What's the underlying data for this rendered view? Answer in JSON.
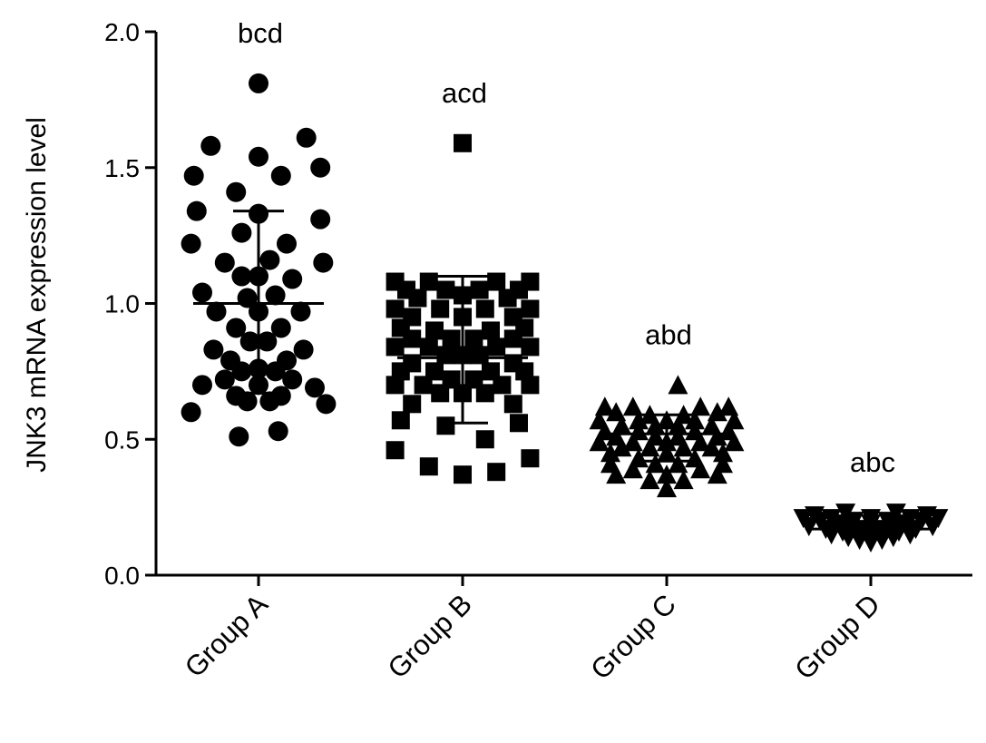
{
  "chart_data": {
    "type": "scatter",
    "ylabel": "JNK3 mRNA expression level",
    "xlabel": "",
    "ylim": [
      0,
      2.0
    ],
    "yticks": [
      0.0,
      0.5,
      1.0,
      1.5,
      2.0
    ],
    "ytick_labels": [
      "0.0",
      "0.5",
      "1.0",
      "1.5",
      "2.0"
    ],
    "grid": false,
    "legend": "none",
    "categories": [
      "Group A",
      "Group B",
      "Group C",
      "Group D"
    ],
    "series": [
      {
        "category": "Group A",
        "marker": "circle",
        "annotation": "bcd",
        "mean": 1.0,
        "sd_low": 0.67,
        "sd_high": 1.34,
        "points": [
          [
            0.0,
            1.81
          ],
          [
            -0.85,
            1.58
          ],
          [
            0.0,
            1.54
          ],
          [
            0.85,
            1.61
          ],
          [
            -1.15,
            1.47
          ],
          [
            0.4,
            1.47
          ],
          [
            1.1,
            1.5
          ],
          [
            -0.4,
            1.41
          ],
          [
            -1.1,
            1.34
          ],
          [
            0.0,
            1.33
          ],
          [
            1.1,
            1.31
          ],
          [
            -0.3,
            1.26
          ],
          [
            -1.2,
            1.22
          ],
          [
            0.5,
            1.22
          ],
          [
            -0.6,
            1.15
          ],
          [
            0.2,
            1.16
          ],
          [
            1.15,
            1.15
          ],
          [
            0.0,
            1.1
          ],
          [
            -0.3,
            1.1
          ],
          [
            0.6,
            1.09
          ],
          [
            -1.0,
            1.04
          ],
          [
            -0.2,
            1.02
          ],
          [
            0.3,
            1.03
          ],
          [
            -0.75,
            0.97
          ],
          [
            0.0,
            0.97
          ],
          [
            0.75,
            0.97
          ],
          [
            -0.4,
            0.91
          ],
          [
            0.4,
            0.91
          ],
          [
            -0.15,
            0.86
          ],
          [
            -0.8,
            0.83
          ],
          [
            0.15,
            0.86
          ],
          [
            0.8,
            0.83
          ],
          [
            -0.5,
            0.79
          ],
          [
            0.5,
            0.79
          ],
          [
            -0.3,
            0.75
          ],
          [
            0.0,
            0.76
          ],
          [
            0.3,
            0.75
          ],
          [
            -0.6,
            0.72
          ],
          [
            0.6,
            0.72
          ],
          [
            -1.0,
            0.7
          ],
          [
            0.0,
            0.7
          ],
          [
            1.0,
            0.69
          ],
          [
            -0.4,
            0.66
          ],
          [
            0.4,
            0.66
          ],
          [
            -0.2,
            0.64
          ],
          [
            0.2,
            0.64
          ],
          [
            1.2,
            0.63
          ],
          [
            -1.2,
            0.6
          ],
          [
            -0.35,
            0.51
          ],
          [
            0.35,
            0.53
          ]
        ]
      },
      {
        "category": "Group B",
        "marker": "square",
        "annotation": "acd",
        "mean": 0.8,
        "sd_low": 0.56,
        "sd_high": 1.1,
        "points": [
          [
            0.0,
            1.59
          ],
          [
            -1.2,
            1.08
          ],
          [
            -0.6,
            1.08
          ],
          [
            0.6,
            1.08
          ],
          [
            1.2,
            1.08
          ],
          [
            -1.0,
            1.05
          ],
          [
            -0.3,
            1.05
          ],
          [
            0.3,
            1.05
          ],
          [
            1.0,
            1.05
          ],
          [
            -0.8,
            1.02
          ],
          [
            0.0,
            1.03
          ],
          [
            0.8,
            1.02
          ],
          [
            -1.2,
            0.98
          ],
          [
            -0.4,
            0.98
          ],
          [
            0.4,
            0.98
          ],
          [
            1.2,
            0.98
          ],
          [
            -0.9,
            0.95
          ],
          [
            0.0,
            0.95
          ],
          [
            0.9,
            0.95
          ],
          [
            -1.1,
            0.91
          ],
          [
            -0.5,
            0.9
          ],
          [
            0.5,
            0.9
          ],
          [
            1.1,
            0.91
          ],
          [
            -0.2,
            0.87
          ],
          [
            0.2,
            0.87
          ],
          [
            -0.9,
            0.87
          ],
          [
            0.9,
            0.87
          ],
          [
            -1.2,
            0.84
          ],
          [
            -0.6,
            0.84
          ],
          [
            0.6,
            0.84
          ],
          [
            1.2,
            0.84
          ],
          [
            -0.3,
            0.81
          ],
          [
            0.0,
            0.81
          ],
          [
            0.3,
            0.81
          ],
          [
            -0.9,
            0.78
          ],
          [
            0.9,
            0.78
          ],
          [
            -1.1,
            0.75
          ],
          [
            -0.5,
            0.75
          ],
          [
            0.5,
            0.75
          ],
          [
            1.1,
            0.75
          ],
          [
            -0.2,
            0.72
          ],
          [
            0.2,
            0.72
          ],
          [
            -1.2,
            0.7
          ],
          [
            -0.7,
            0.7
          ],
          [
            0.7,
            0.7
          ],
          [
            1.2,
            0.7
          ],
          [
            0.0,
            0.67
          ],
          [
            -0.4,
            0.67
          ],
          [
            0.4,
            0.67
          ],
          [
            -0.9,
            0.63
          ],
          [
            0.9,
            0.63
          ],
          [
            -1.1,
            0.57
          ],
          [
            -0.3,
            0.55
          ],
          [
            1.0,
            0.56
          ],
          [
            0.4,
            0.5
          ],
          [
            -1.2,
            0.46
          ],
          [
            1.2,
            0.43
          ],
          [
            -0.6,
            0.4
          ],
          [
            0.0,
            0.37
          ],
          [
            0.6,
            0.38
          ]
        ]
      },
      {
        "category": "Group C",
        "marker": "triangle-up",
        "annotation": "abd",
        "mean": 0.52,
        "sd_low": 0.42,
        "sd_high": 0.59,
        "points": [
          [
            0.2,
            0.7
          ],
          [
            -1.1,
            0.62
          ],
          [
            -0.6,
            0.62
          ],
          [
            0.6,
            0.62
          ],
          [
            1.1,
            0.62
          ],
          [
            -0.9,
            0.6
          ],
          [
            -0.3,
            0.59
          ],
          [
            0.3,
            0.59
          ],
          [
            0.9,
            0.6
          ],
          [
            -1.2,
            0.57
          ],
          [
            -0.5,
            0.57
          ],
          [
            0.0,
            0.57
          ],
          [
            0.5,
            0.57
          ],
          [
            1.2,
            0.57
          ],
          [
            -0.8,
            0.55
          ],
          [
            -0.2,
            0.55
          ],
          [
            0.2,
            0.55
          ],
          [
            0.8,
            0.55
          ],
          [
            -1.1,
            0.53
          ],
          [
            -0.5,
            0.53
          ],
          [
            0.5,
            0.53
          ],
          [
            1.1,
            0.53
          ],
          [
            -0.9,
            0.51
          ],
          [
            -0.2,
            0.51
          ],
          [
            0.2,
            0.51
          ],
          [
            0.9,
            0.51
          ],
          [
            -1.2,
            0.49
          ],
          [
            -0.6,
            0.49
          ],
          [
            0.0,
            0.49
          ],
          [
            0.6,
            0.49
          ],
          [
            1.2,
            0.49
          ],
          [
            -0.8,
            0.47
          ],
          [
            -0.3,
            0.47
          ],
          [
            0.3,
            0.47
          ],
          [
            0.8,
            0.47
          ],
          [
            -1.0,
            0.45
          ],
          [
            0.0,
            0.45
          ],
          [
            1.0,
            0.45
          ],
          [
            -0.5,
            0.43
          ],
          [
            0.5,
            0.43
          ],
          [
            -1.0,
            0.41
          ],
          [
            -0.2,
            0.41
          ],
          [
            0.2,
            0.41
          ],
          [
            1.0,
            0.41
          ],
          [
            -0.6,
            0.39
          ],
          [
            0.6,
            0.39
          ],
          [
            -0.9,
            0.37
          ],
          [
            0.0,
            0.37
          ],
          [
            0.9,
            0.37
          ],
          [
            -0.3,
            0.35
          ],
          [
            0.3,
            0.35
          ],
          [
            0.0,
            0.32
          ]
        ]
      },
      {
        "category": "Group D",
        "marker": "triangle-down",
        "annotation": "abc",
        "mean": 0.17,
        "sd_low": 0.15,
        "sd_high": 0.19,
        "points": [
          [
            -0.45,
            0.23
          ],
          [
            0.45,
            0.23
          ],
          [
            -1.0,
            0.22
          ],
          [
            1.0,
            0.22
          ],
          [
            -0.7,
            0.21
          ],
          [
            0.0,
            0.21
          ],
          [
            0.7,
            0.21
          ],
          [
            -1.2,
            0.21
          ],
          [
            1.2,
            0.21
          ],
          [
            -0.9,
            0.2
          ],
          [
            -0.3,
            0.2
          ],
          [
            0.3,
            0.2
          ],
          [
            0.9,
            0.2
          ],
          [
            -0.6,
            0.19
          ],
          [
            0.0,
            0.19
          ],
          [
            0.6,
            0.19
          ],
          [
            -1.1,
            0.18
          ],
          [
            -0.4,
            0.18
          ],
          [
            0.4,
            0.18
          ],
          [
            1.1,
            0.18
          ],
          [
            -0.8,
            0.17
          ],
          [
            -0.2,
            0.17
          ],
          [
            0.2,
            0.17
          ],
          [
            0.8,
            0.17
          ],
          [
            -0.5,
            0.16
          ],
          [
            0.0,
            0.16
          ],
          [
            0.5,
            0.16
          ],
          [
            -0.7,
            0.15
          ],
          [
            -0.2,
            0.15
          ],
          [
            0.2,
            0.15
          ],
          [
            0.7,
            0.15
          ],
          [
            -0.4,
            0.14
          ],
          [
            0.0,
            0.14
          ],
          [
            0.4,
            0.14
          ],
          [
            -0.2,
            0.13
          ],
          [
            0.2,
            0.13
          ],
          [
            0.0,
            0.12
          ]
        ]
      }
    ]
  }
}
